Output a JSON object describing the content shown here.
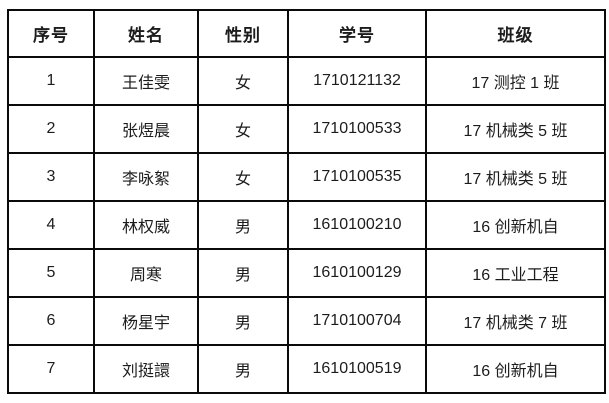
{
  "table": {
    "columns": [
      "序号",
      "姓名",
      "性别",
      "学号",
      "班级"
    ],
    "rows": [
      [
        "1",
        "王佳雯",
        "女",
        "1710121132",
        "17 测控 1 班"
      ],
      [
        "2",
        "张煜晨",
        "女",
        "1710100533",
        "17 机械类 5 班"
      ],
      [
        "3",
        "李咏絮",
        "女",
        "1710100535",
        "17 机械类 5 班"
      ],
      [
        "4",
        "林权威",
        "男",
        "1610100210",
        "16 创新机自"
      ],
      [
        "5",
        "周寒",
        "男",
        "1610100129",
        "16 工业工程"
      ],
      [
        "6",
        "杨星宇",
        "男",
        "1710100704",
        "17 机械类 7 班"
      ],
      [
        "7",
        "刘挺譞",
        "男",
        "1610100519",
        "16 创新机自"
      ]
    ],
    "style": {
      "border_color": "#0a0a0a",
      "text_color": "#1c1c1c",
      "background": "#ffffff"
    }
  }
}
